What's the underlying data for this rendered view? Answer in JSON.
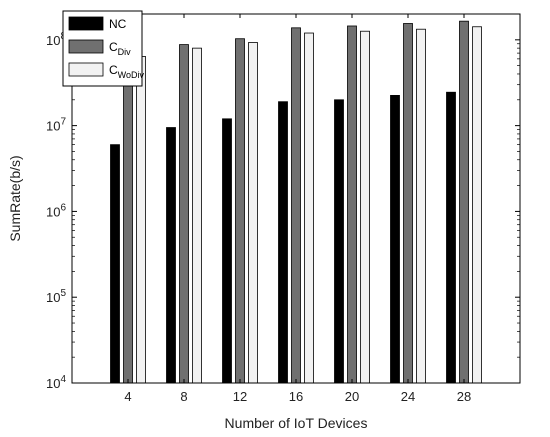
{
  "chart_data": {
    "type": "bar",
    "yscale": "log",
    "xlabel": "Number of IoT Devices",
    "ylabel": "SumRate(b/s)",
    "ylim": [
      10000,
      200000000
    ],
    "categories": [
      "4",
      "8",
      "12",
      "16",
      "20",
      "24",
      "28"
    ],
    "y_ticks": [
      {
        "value": 10000,
        "base": "10",
        "exp": "4"
      },
      {
        "value": 100000,
        "base": "10",
        "exp": "5"
      },
      {
        "value": 1000000,
        "base": "10",
        "exp": "6"
      },
      {
        "value": 10000000,
        "base": "10",
        "exp": "7"
      },
      {
        "value": 100000000,
        "base": "10",
        "exp": "8"
      }
    ],
    "legend_position": "top-left",
    "series": [
      {
        "name": "NC",
        "name_main": "NC",
        "name_sub": "",
        "color": "#000000",
        "values": [
          6000000,
          9500000,
          12000000,
          19000000,
          20000000,
          22500000,
          24500000
        ]
      },
      {
        "name": "C_Div",
        "name_main": "C",
        "name_sub": "Div",
        "color": "#707070",
        "values": [
          68000000,
          88000000,
          103000000,
          138000000,
          145000000,
          155000000,
          165000000
        ]
      },
      {
        "name": "C_WoDiv",
        "name_main": "C",
        "name_sub": "WoDiv",
        "color": "#f2f2f2",
        "values": [
          64000000,
          80000000,
          93000000,
          120000000,
          126000000,
          133000000,
          142000000
        ]
      }
    ]
  }
}
